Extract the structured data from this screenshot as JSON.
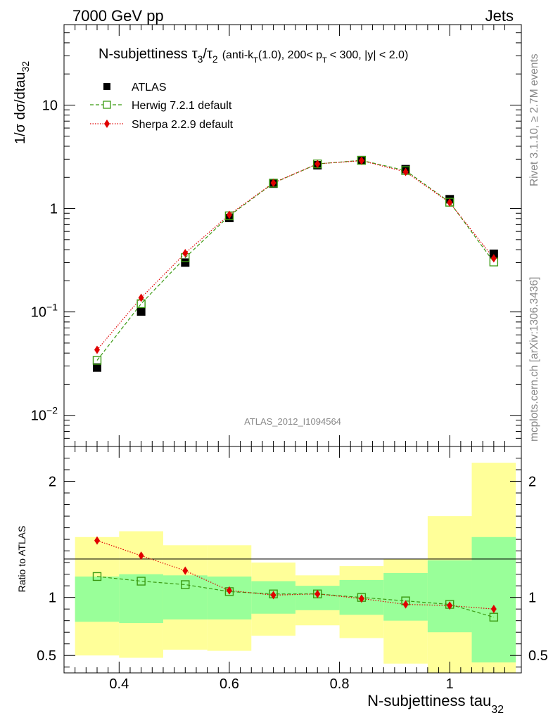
{
  "header": {
    "energy_label": "7000 GeV pp",
    "process_label": "Jets",
    "side_label_rivet": "Rivet 3.1.10, ≥ 2.7M events",
    "side_label_source": "mcplots.cern.ch [arXiv:1306.3436]",
    "analysis_id": "ATLAS_2012_I1094564"
  },
  "colors": {
    "atlas": "#000000",
    "herwig": "#3a9a12",
    "sherpa": "#e00000",
    "band_inner": "#99ff99",
    "band_outer": "#ffff99"
  },
  "chart_data": [
    {
      "type": "scatter",
      "panel": "main",
      "title": "N-subjettiness τ3/τ2 (anti-kT(1.0), 200< pT < 300, |y| < 2.0)",
      "title_parts": {
        "lead": "N-subjettiness",
        "tau_a": "τ",
        "sub_a": "3",
        "slash": "/",
        "tau_b": "τ",
        "sub_b": "2",
        "cond_1": "(anti-k",
        "cond_sub_t1": "T",
        "cond_2": "(1.0), 200< p",
        "cond_sub_t2": "T",
        "cond_3": "< 300, |y| < 2.0)"
      },
      "ylabel": "1/σ dσ/dtau32",
      "ylabel_parts": {
        "main": "1/σ dσ/dtau",
        "sub": "32"
      },
      "yscale": "log",
      "ylim": [
        0.005,
        60
      ],
      "xlim": [
        0.3,
        1.13
      ],
      "y_ticks": [
        {
          "value": 0.01,
          "base": "10",
          "exp": "−2"
        },
        {
          "value": 0.1,
          "base": "10",
          "exp": "−1"
        },
        {
          "value": 1,
          "label": "1"
        },
        {
          "value": 10,
          "label": "10"
        }
      ],
      "legend_position": "top-left",
      "x": [
        0.36,
        0.44,
        0.52,
        0.6,
        0.68,
        0.76,
        0.84,
        0.92,
        1.0,
        1.08
      ],
      "bin_edges": [
        0.32,
        0.4,
        0.48,
        0.56,
        0.64,
        0.72,
        0.8,
        0.88,
        0.96,
        1.04,
        1.12
      ],
      "series": [
        {
          "key": "atlas",
          "name": "ATLAS",
          "marker": "filled-square",
          "values": [
            0.029,
            0.101,
            0.3,
            0.81,
            1.74,
            2.62,
            2.93,
            2.4,
            1.23,
            0.365
          ]
        },
        {
          "key": "herwig",
          "name": "Herwig 7.2.1 default",
          "marker": "open-square",
          "line": "dashed",
          "values": [
            0.034,
            0.12,
            0.335,
            0.85,
            1.76,
            2.7,
            2.92,
            2.33,
            1.15,
            0.304
          ]
        },
        {
          "key": "sherpa",
          "name": "Sherpa 2.2.9 default",
          "marker": "diamond",
          "line": "dotted",
          "values": [
            0.043,
            0.137,
            0.37,
            0.87,
            1.77,
            2.7,
            2.9,
            2.26,
            1.14,
            0.33
          ]
        }
      ]
    },
    {
      "type": "line",
      "panel": "ratio",
      "ylabel": "Ratio to ATLAS",
      "ylim": [
        0.35,
        2.3
      ],
      "y_ticks": [
        {
          "value": 0.5,
          "label": "0.5"
        },
        {
          "value": 1,
          "label": "1"
        },
        {
          "value": 2,
          "label": "2"
        }
      ],
      "x_ticks": [
        {
          "value": 0.4,
          "label": "0.4"
        },
        {
          "value": 0.6,
          "label": "0.6"
        },
        {
          "value": 0.8,
          "label": "0.8"
        },
        {
          "value": 1.0,
          "label": "1"
        }
      ],
      "xlabel": "N-subjettiness tau32",
      "xlabel_parts": {
        "main": "N-subjettiness tau",
        "sub": "32"
      },
      "bin_edges": [
        0.32,
        0.4,
        0.48,
        0.56,
        0.64,
        0.72,
        0.8,
        0.88,
        0.96,
        1.04,
        1.12
      ],
      "band_inner": {
        "lo": [
          0.79,
          0.78,
          0.81,
          0.81,
          0.86,
          0.89,
          0.85,
          0.8,
          0.7,
          0.44
        ],
        "hi": [
          1.18,
          1.2,
          1.19,
          1.18,
          1.14,
          1.1,
          1.15,
          1.21,
          1.32,
          1.52
        ]
      },
      "band_outer": {
        "lo": [
          0.5,
          0.48,
          0.55,
          0.54,
          0.67,
          0.76,
          0.65,
          0.43,
          0.32,
          0.3
        ],
        "hi": [
          1.52,
          1.57,
          1.45,
          1.45,
          1.3,
          1.19,
          1.27,
          1.33,
          1.7,
          2.16
        ]
      },
      "series": [
        {
          "key": "herwig",
          "name": "Herwig 7.2.1 default",
          "marker": "open-square",
          "line": "dashed",
          "values": [
            1.18,
            1.14,
            1.11,
            1.05,
            1.03,
            1.03,
            1.0,
            0.97,
            0.94,
            0.83
          ]
        },
        {
          "key": "sherpa",
          "name": "Sherpa 2.2.9 default",
          "marker": "diamond",
          "line": "dotted",
          "values": [
            1.49,
            1.36,
            1.23,
            1.06,
            1.02,
            1.03,
            0.99,
            0.94,
            0.93,
            0.9
          ]
        }
      ]
    }
  ]
}
